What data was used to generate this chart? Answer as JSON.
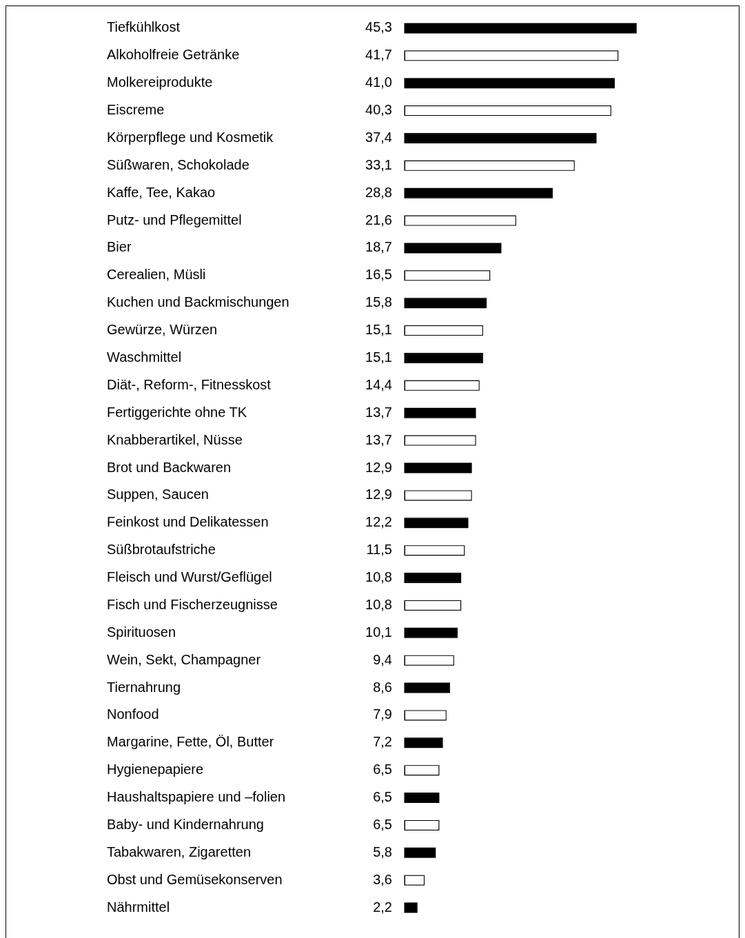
{
  "chart_data": {
    "type": "bar",
    "orientation": "horizontal",
    "categories": [
      "Tiefkühlkost",
      "Alkoholfreie Getränke",
      "Molkereiprodukte",
      "Eiscreme",
      "Körperpflege und Kosmetik",
      "Süßwaren, Schokolade",
      "Kaffe, Tee, Kakao",
      "Putz- und Pflegemittel",
      "Bier",
      "Cerealien, Müsli",
      "Kuchen und Backmischungen",
      "Gewürze, Würzen",
      "Waschmittel",
      "Diät-, Reform-, Fitnesskost",
      "Fertiggerichte ohne TK",
      "Knabberartikel, Nüsse",
      "Brot und Backwaren",
      "Suppen, Saucen",
      "Feinkost und Delikatessen",
      "Süßbrotaufstriche",
      "Fleisch und Wurst/Geflügel",
      "Fisch und Fischerzeugnisse",
      "Spirituosen",
      "Wein, Sekt, Champagner",
      "Tiernahrung",
      "Nonfood",
      "Margarine, Fette, Öl, Butter",
      "Hygienepapiere",
      "Haushaltspapiere und –folien",
      "Baby- und Kindernahrung",
      "Tabakwaren, Zigaretten",
      "Obst und Gemüsekonserven",
      "Nährmittel"
    ],
    "values": [
      45.3,
      41.7,
      41.0,
      40.3,
      37.4,
      33.1,
      28.8,
      21.6,
      18.7,
      16.5,
      15.8,
      15.1,
      15.1,
      14.4,
      13.7,
      13.7,
      12.9,
      12.9,
      12.2,
      11.5,
      10.8,
      10.8,
      10.1,
      9.4,
      8.6,
      7.9,
      7.2,
      6.5,
      6.5,
      6.5,
      5.8,
      3.6,
      2.2
    ],
    "value_labels": [
      "45,3",
      "41,7",
      "41,0",
      "40,3",
      "37,4",
      "33,1",
      "28,8",
      "21,6",
      "18,7",
      "16,5",
      "15,8",
      "15,1",
      "15,1",
      "14,4",
      "13,7",
      "13,7",
      "12,9",
      "12,9",
      "12,2",
      "11,5",
      "10,8",
      "10,8",
      "10,1",
      "9,4",
      "8,6",
      "7,9",
      "7,2",
      "6,5",
      "6,5",
      "6,5",
      "5,8",
      "3,6",
      "2,2"
    ],
    "colors": [
      "#000000",
      "#ffffff",
      "#000000",
      "#ffffff",
      "#000000",
      "#ffffff",
      "#000000",
      "#ffffff",
      "#000000",
      "#ffffff",
      "#000000",
      "#ffffff",
      "#000000",
      "#ffffff",
      "#000000",
      "#ffffff",
      "#000000",
      "#ffffff",
      "#000000",
      "#ffffff",
      "#000000",
      "#ffffff",
      "#000000",
      "#ffffff",
      "#000000",
      "#ffffff",
      "#000000",
      "#ffffff",
      "#000000",
      "#ffffff",
      "#000000",
      "#ffffff",
      "#000000"
    ]
  }
}
